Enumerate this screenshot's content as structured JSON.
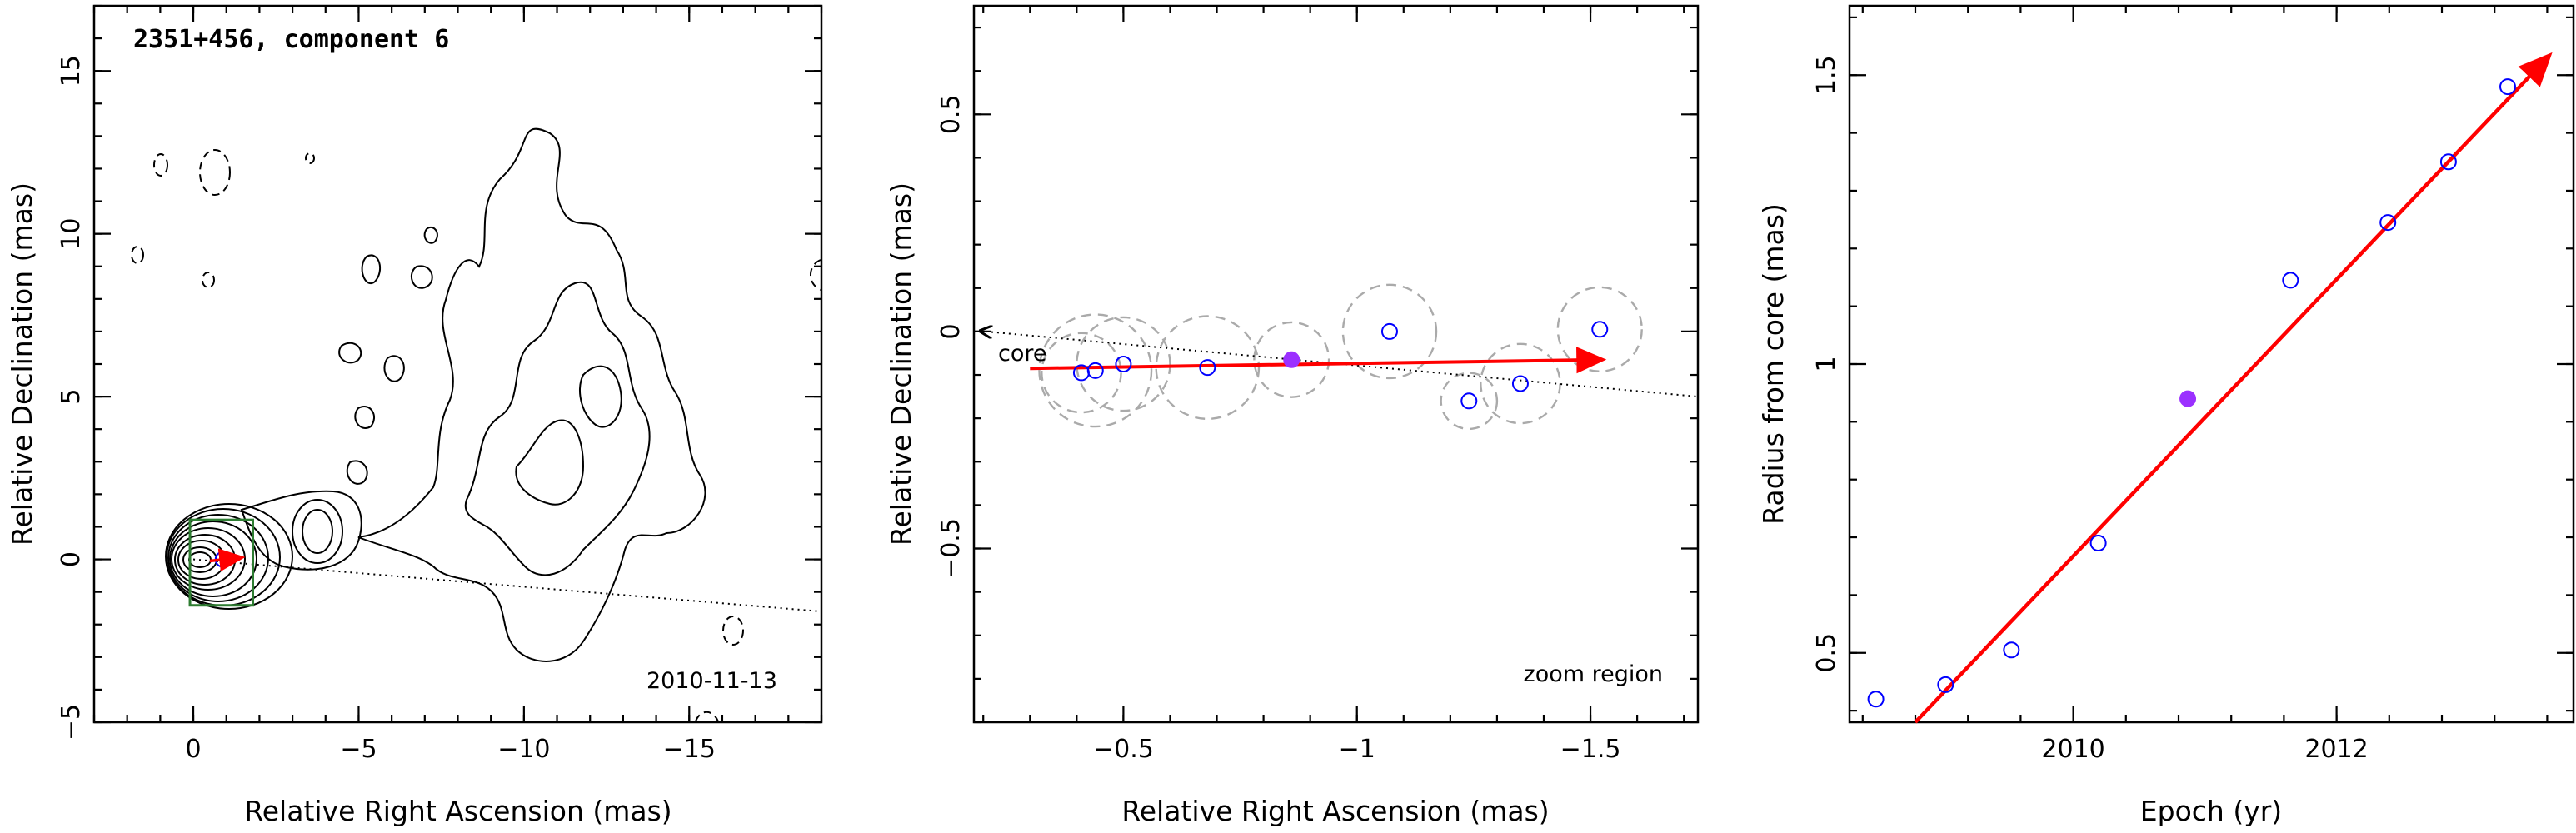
{
  "chart_data": [
    {
      "type": "contour",
      "title": "2351+456, component 6",
      "xlabel": "Relative Right Ascension (mas)",
      "ylabel": "Relative Declination (mas)",
      "xlim": [
        3,
        -19
      ],
      "ylim": [
        -5,
        17
      ],
      "xticks": [
        0,
        -5,
        -10,
        -15
      ],
      "yticks": [
        -5,
        0,
        5,
        10,
        15
      ],
      "annotation": "2010-11-13",
      "core": [
        0,
        0
      ],
      "dotted_line": [
        [
          0,
          0
        ],
        [
          -19,
          -1.6
        ]
      ],
      "zoom_box": {
        "x": [
          0,
          -1.7
        ],
        "y": [
          -0.9,
          0.7
        ]
      },
      "velocity_arrow": {
        "from": [
          -0.5,
          -0.05
        ],
        "to": [
          -1.4,
          0.05
        ],
        "color": "#ff0000"
      }
    },
    {
      "type": "scatter",
      "xlabel": "Relative Right Ascension (mas)",
      "ylabel": "Relative Declination (mas)",
      "xlim": [
        -0.18,
        -1.73
      ],
      "ylim": [
        -0.9,
        0.75
      ],
      "xticks": [
        -0.5,
        -1,
        -1.5
      ],
      "yticks": [
        -0.5,
        0,
        0.5
      ],
      "annotation_core": "core",
      "annotation_zoom": "zoom region",
      "points": [
        {
          "x": -0.41,
          "y": -0.095,
          "r": 0.085
        },
        {
          "x": -0.44,
          "y": -0.09,
          "r": 0.12
        },
        {
          "x": -0.5,
          "y": -0.075,
          "r": 0.1
        },
        {
          "x": -0.68,
          "y": -0.083,
          "r": 0.11
        },
        {
          "x": -0.86,
          "y": -0.065,
          "r": 0.08,
          "highlight": true
        },
        {
          "x": -1.07,
          "y": 0.0,
          "r": 0.1
        },
        {
          "x": -1.24,
          "y": -0.16,
          "r": 0.06
        },
        {
          "x": -1.35,
          "y": -0.12,
          "r": 0.085
        },
        {
          "x": -1.52,
          "y": 0.005,
          "r": 0.09
        }
      ],
      "highlight_color": "#9b30ff",
      "point_color": "#0000ff",
      "fit_arrow": {
        "from": [
          -0.3,
          -0.085
        ],
        "to": [
          -1.52,
          -0.065
        ],
        "color": "#ff0000"
      },
      "dotted_line": [
        [
          -0.18,
          0.0
        ],
        [
          -1.73,
          -0.15
        ]
      ]
    },
    {
      "type": "scatter",
      "xlabel": "Epoch (yr)",
      "ylabel": "Radius from core (mas)",
      "xlim": [
        2008.3,
        2013.8
      ],
      "ylim": [
        0.38,
        1.62
      ],
      "xticks": [
        2010,
        2012
      ],
      "yticks": [
        0.5,
        1,
        1.5
      ],
      "points": [
        {
          "x": 2008.5,
          "y": 0.42
        },
        {
          "x": 2009.03,
          "y": 0.445
        },
        {
          "x": 2009.53,
          "y": 0.505
        },
        {
          "x": 2010.19,
          "y": 0.69
        },
        {
          "x": 2010.87,
          "y": 0.94,
          "highlight": true
        },
        {
          "x": 2011.65,
          "y": 1.145
        },
        {
          "x": 2012.39,
          "y": 1.245
        },
        {
          "x": 2012.85,
          "y": 1.35
        },
        {
          "x": 2013.3,
          "y": 1.48
        }
      ],
      "highlight_color": "#9b30ff",
      "point_color": "#0000ff",
      "fit_arrow": {
        "from": [
          2008.8,
          0.38
        ],
        "to": [
          2013.6,
          1.53
        ],
        "color": "#ff0000"
      }
    }
  ]
}
